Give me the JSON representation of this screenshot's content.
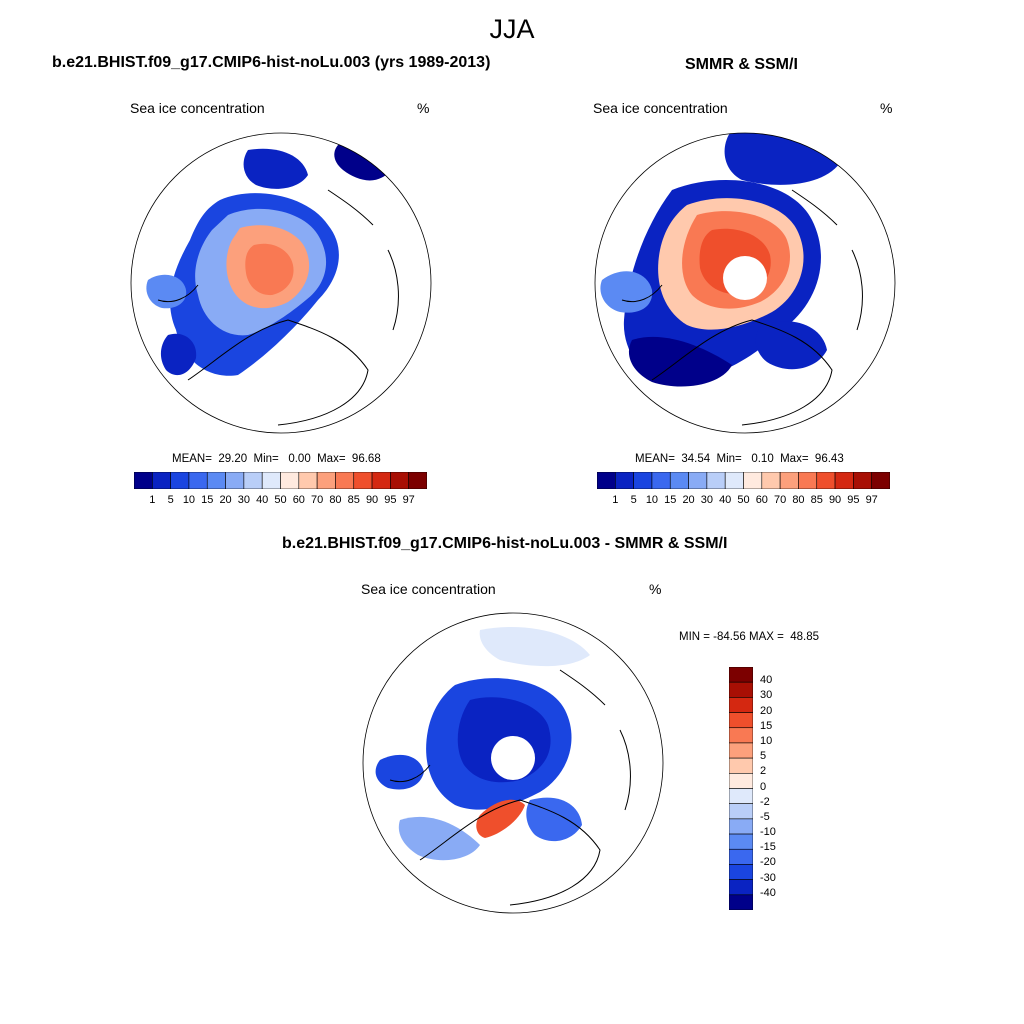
{
  "page": {
    "season_title": "JJA"
  },
  "palette": {
    "seq": [
      "#00008a",
      "#0a23c2",
      "#1a45e0",
      "#3a68ef",
      "#5b8af3",
      "#89abf5",
      "#b9cef8",
      "#dfe9fb",
      "#ffeadf",
      "#ffc9ad",
      "#fca07c",
      "#f97953",
      "#ef4f2c",
      "#d42811",
      "#a80f04",
      "#7c0000"
    ],
    "div": [
      "#00008a",
      "#0a23c2",
      "#1a45e0",
      "#3a68ef",
      "#5b8af3",
      "#89abf5",
      "#b9cef8",
      "#dfe9fb",
      "#ffeadf",
      "#ffc9ad",
      "#fca07c",
      "#f97953",
      "#ef4f2c",
      "#d42811",
      "#a80f04",
      "#7c0000"
    ]
  },
  "panels": {
    "model": {
      "title": "b.e21.BHIST.f09_g17.CMIP6-hist-noLu.003 (yrs 1989-2013)",
      "field": "Sea ice concentration",
      "units": "%",
      "stats": "MEAN=  29.20  Min=   0.00  Max=  96.68"
    },
    "obs": {
      "title": "SMMR & SSM/I",
      "field": "Sea ice concentration",
      "units": "%",
      "stats": "MEAN=  34.54  Min=   0.10  Max=  96.43"
    },
    "diff": {
      "title": "b.e21.BHIST.f09_g17.CMIP6-hist-noLu.003 - SMMR & SSM/I",
      "field": "Sea ice concentration",
      "units": "%",
      "stats": "MIN = -84.56 MAX =  48.85"
    }
  },
  "chart_data": [
    {
      "type": "heatmap",
      "projection": "north-polar-stereographic",
      "title": "b.e21.BHIST.f09_g17.CMIP6-hist-noLu.003 (yrs 1989-2013)",
      "variable": "Sea ice concentration",
      "units": "%",
      "mean": 29.2,
      "min": 0.0,
      "max": 96.68,
      "colorbar_levels": [
        "1",
        "5",
        "10",
        "15",
        "20",
        "30",
        "40",
        "50",
        "60",
        "70",
        "80",
        "85",
        "90",
        "95",
        "97"
      ],
      "colorbar_orientation": "horizontal"
    },
    {
      "type": "heatmap",
      "projection": "north-polar-stereographic",
      "title": "SMMR & SSM/I",
      "variable": "Sea ice concentration",
      "units": "%",
      "mean": 34.54,
      "min": 0.1,
      "max": 96.43,
      "pole_hole": true,
      "colorbar_levels": [
        "1",
        "5",
        "10",
        "15",
        "20",
        "30",
        "40",
        "50",
        "60",
        "70",
        "80",
        "85",
        "90",
        "95",
        "97"
      ],
      "colorbar_orientation": "horizontal"
    },
    {
      "type": "heatmap",
      "projection": "north-polar-stereographic",
      "title": "b.e21.BHIST.f09_g17.CMIP6-hist-noLu.003 - SMMR & SSM/I",
      "variable": "Sea ice concentration",
      "units": "%",
      "min": -84.56,
      "max": 48.85,
      "pole_hole": true,
      "colorbar_levels": [
        "40",
        "30",
        "20",
        "15",
        "10",
        "5",
        "2",
        "0",
        "-2",
        "-5",
        "-10",
        "-15",
        "-20",
        "-30",
        "-40"
      ],
      "colorbar_orientation": "vertical"
    }
  ]
}
